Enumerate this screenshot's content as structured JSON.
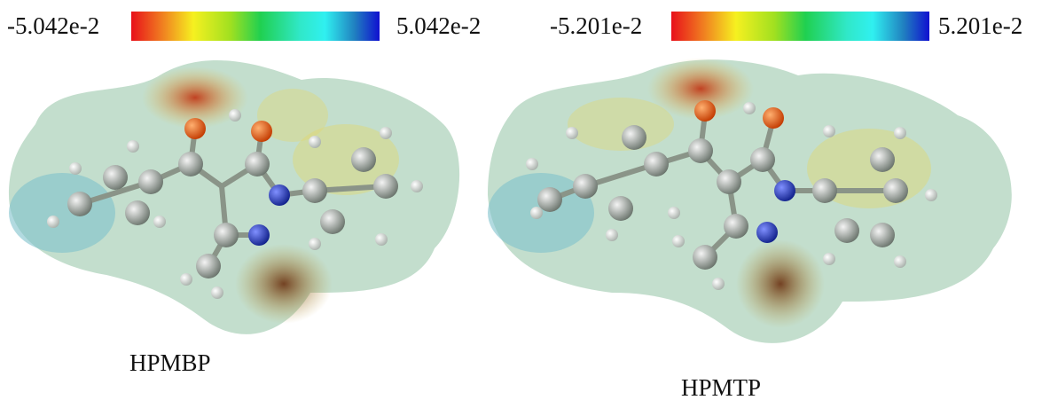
{
  "panels": [
    {
      "scale_min": "-5.042e-2",
      "scale_max": "5.042e-2",
      "label": "HPMBP"
    },
    {
      "scale_min": "-5.201e-2",
      "scale_max": "5.201e-2",
      "label": "HPMTP"
    }
  ]
}
